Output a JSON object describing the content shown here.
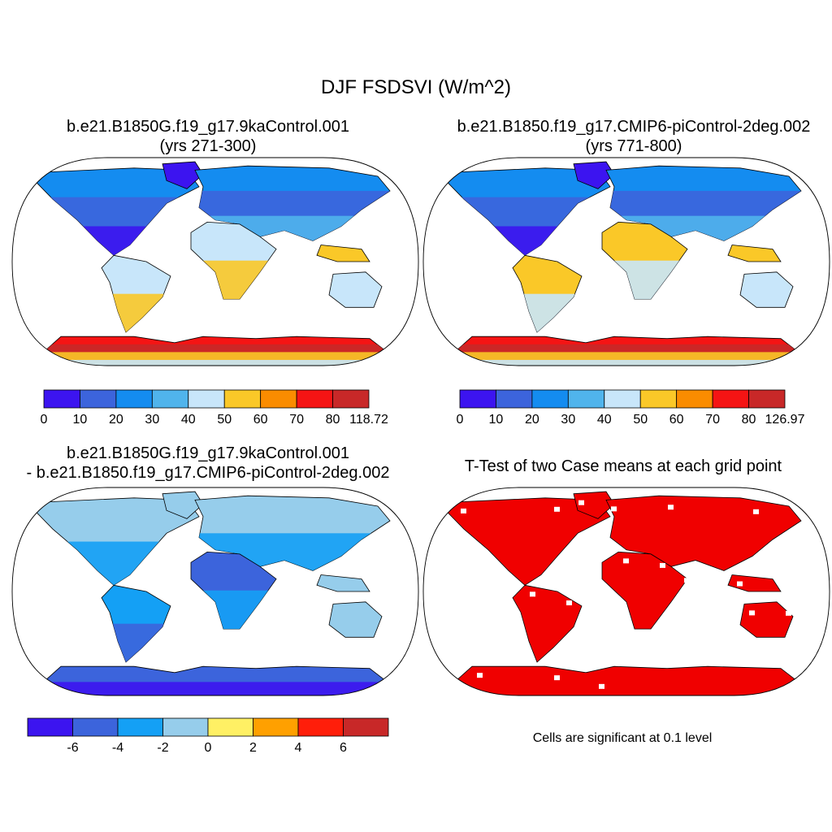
{
  "title": "DJF FSDSVI (W/m^2)",
  "panels": [
    {
      "id": "case1",
      "title_line1": "b.e21.B1850G.f19_g17.9kaControl.001",
      "title_line2": "(yrs 271-300)",
      "colorbar": {
        "colors": [
          "#3c14f0",
          "#3c64dc",
          "#148cf0",
          "#50b4ec",
          "#c8e6fa",
          "#fac828",
          "#fa8c00",
          "#f51414",
          "#c82828"
        ],
        "labels": [
          "0",
          "10",
          "20",
          "30",
          "40",
          "50",
          "60",
          "70",
          "80",
          "118.72"
        ]
      }
    },
    {
      "id": "case2",
      "title_line1": "b.e21.B1850.f19_g17.CMIP6-piControl-2deg.002",
      "title_line2": "(yrs 771-800)",
      "colorbar": {
        "colors": [
          "#3c14f0",
          "#3c64dc",
          "#148cf0",
          "#50b4ec",
          "#c8e6fa",
          "#fac828",
          "#fa8c00",
          "#f51414",
          "#c82828"
        ],
        "labels": [
          "0",
          "10",
          "20",
          "30",
          "40",
          "50",
          "60",
          "70",
          "80",
          "126.97"
        ]
      }
    },
    {
      "id": "difference",
      "title_line1": "b.e21.B1850G.f19_g17.9kaControl.001",
      "title_line2": "- b.e21.B1850.f19_g17.CMIP6-piControl-2deg.002",
      "colorbar": {
        "colors": [
          "#3c14f0",
          "#3c64dc",
          "#14a0f5",
          "#96cdeb",
          "#fff064",
          "#ffa000",
          "#ff1e0a",
          "#c82828"
        ],
        "labels": [
          "-6",
          "-4",
          "-2",
          "0",
          "2",
          "4",
          "6"
        ]
      }
    },
    {
      "id": "ttest",
      "title": "T-Test of two Case means at each grid point",
      "note": "Cells are significant at 0.1 level",
      "fill_color": "#f00000"
    }
  ]
}
